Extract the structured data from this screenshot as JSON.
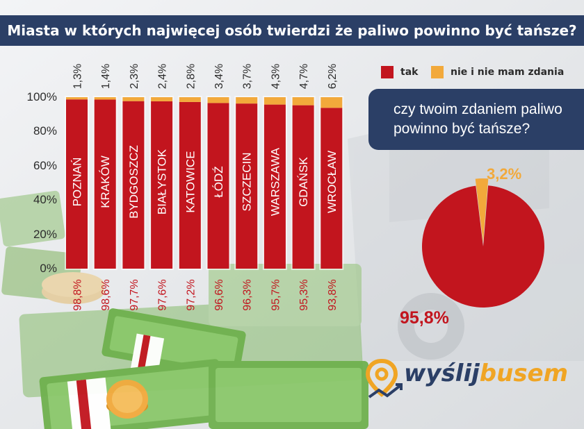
{
  "title": "Miasta w których najwięcej osób twierdzi że paliwo powinno być tańsze?",
  "legend": {
    "tak": "tak",
    "nie": "nie i nie mam zdania"
  },
  "colors": {
    "tak": "#c2151e",
    "nie": "#f2a93b",
    "navy": "#2b3f66"
  },
  "question": {
    "line1": "czy twoim zdaniem paliwo",
    "line2": "powinno być tańsze?"
  },
  "logo": {
    "part1": "wyślij",
    "part2": "busem"
  },
  "chart_data": [
    {
      "type": "bar",
      "stacked": true,
      "categories": [
        "POZNAŃ",
        "KRAKÓW",
        "BYDGOSZCZ",
        "BIAŁYSTOK",
        "KATOWICE",
        "ŁÓDŹ",
        "SZCZECIN",
        "WARSZAWA",
        "GDAŃSK",
        "WROCŁAW"
      ],
      "series": [
        {
          "name": "tak",
          "values": [
            98.8,
            98.6,
            97.7,
            97.6,
            97.2,
            96.6,
            96.3,
            95.7,
            95.3,
            93.8
          ]
        },
        {
          "name": "nie i nie mam zdania",
          "values": [
            1.3,
            1.4,
            2.3,
            2.4,
            2.8,
            3.4,
            3.7,
            4.3,
            4.7,
            6.2
          ]
        }
      ],
      "top_labels": [
        "1,3%",
        "1,4%",
        "2,3%",
        "2,4%",
        "2,8%",
        "3,4%",
        "3,7%",
        "4,3%",
        "4,7%",
        "6,2%"
      ],
      "bottom_labels": [
        "98,8%",
        "98,6%",
        "97,7%",
        "97,6%",
        "97,2%",
        "96,6%",
        "96,3%",
        "95,7%",
        "95,3%",
        "93,8%"
      ],
      "yticks": [
        "0%",
        "20%",
        "40%",
        "60%",
        "80%",
        "100%"
      ],
      "ylim": [
        0,
        100
      ]
    },
    {
      "type": "pie",
      "labels": [
        "tak",
        "nie i nie mam zdania"
      ],
      "values": [
        95.8,
        3.2
      ],
      "value_labels": [
        "95,8%",
        "3,2%"
      ]
    }
  ]
}
